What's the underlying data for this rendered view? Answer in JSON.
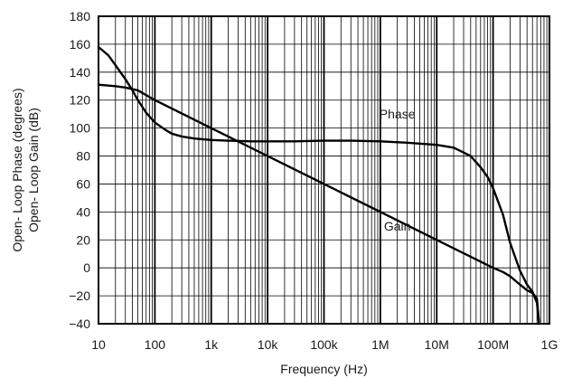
{
  "chart_data": {
    "type": "line",
    "xscale": "log",
    "xlim": [
      10,
      1000000000
    ],
    "ylim": [
      -40,
      180
    ],
    "grid": true,
    "xlabel": "Frequency (Hz)",
    "ylabel_lines": [
      "Open- Loop Phase (degrees)",
      "Open- Loop Gain (dB)"
    ],
    "x_ticks": [
      {
        "value": 10,
        "label": "10"
      },
      {
        "value": 100,
        "label": "100"
      },
      {
        "value": 1000,
        "label": "1k"
      },
      {
        "value": 10000,
        "label": "10k"
      },
      {
        "value": 100000,
        "label": "100k"
      },
      {
        "value": 1000000,
        "label": "1M"
      },
      {
        "value": 10000000,
        "label": "10M"
      },
      {
        "value": 100000000,
        "label": "100M"
      },
      {
        "value": 1000000000,
        "label": "1G"
      }
    ],
    "y_ticks": [
      {
        "value": 180,
        "label": "180"
      },
      {
        "value": 160,
        "label": "160"
      },
      {
        "value": 140,
        "label": "140"
      },
      {
        "value": 120,
        "label": "120"
      },
      {
        "value": 100,
        "label": "100"
      },
      {
        "value": 80,
        "label": "80"
      },
      {
        "value": 60,
        "label": "60"
      },
      {
        "value": 40,
        "label": "40"
      },
      {
        "value": 20,
        "label": "20"
      },
      {
        "value": 0,
        "label": "0"
      },
      {
        "value": -20,
        "label": "−20"
      },
      {
        "value": -40,
        "label": "−40"
      }
    ],
    "series": [
      {
        "name": "Phase",
        "label_at": {
          "x": 2000000,
          "y": 110
        },
        "x": [
          10,
          15,
          20,
          30,
          40,
          50,
          70,
          100,
          150,
          200,
          300,
          500,
          1000,
          2000,
          5000,
          10000,
          30000,
          100000,
          300000,
          1000000,
          3000000,
          10000000,
          20000000,
          40000000,
          60000000,
          80000000,
          100000000,
          150000000,
          200000000,
          300000000,
          400000000,
          500000000,
          600000000,
          650000000
        ],
        "y": [
          158,
          152,
          145,
          135,
          127,
          120,
          111,
          104,
          99,
          96,
          94,
          92.5,
          91.5,
          91,
          90.5,
          90.5,
          90.5,
          91,
          91,
          90.5,
          89.5,
          88,
          86,
          80,
          72,
          65,
          57,
          38,
          18,
          -2,
          -12,
          -17,
          -25,
          -40
        ]
      },
      {
        "name": "Gain",
        "label_at": {
          "x": 2000000,
          "y": 30
        },
        "x": [
          10,
          20,
          30,
          50,
          100,
          1000,
          10000,
          100000,
          1000000,
          10000000,
          100000000,
          150000000,
          200000000,
          300000000,
          400000000,
          500000000,
          600000000,
          650000000
        ],
        "y": [
          131,
          130,
          129,
          127,
          120,
          100,
          80,
          60,
          40,
          20,
          0,
          -3,
          -6,
          -12,
          -16,
          -18,
          -22,
          -38
        ]
      }
    ]
  }
}
